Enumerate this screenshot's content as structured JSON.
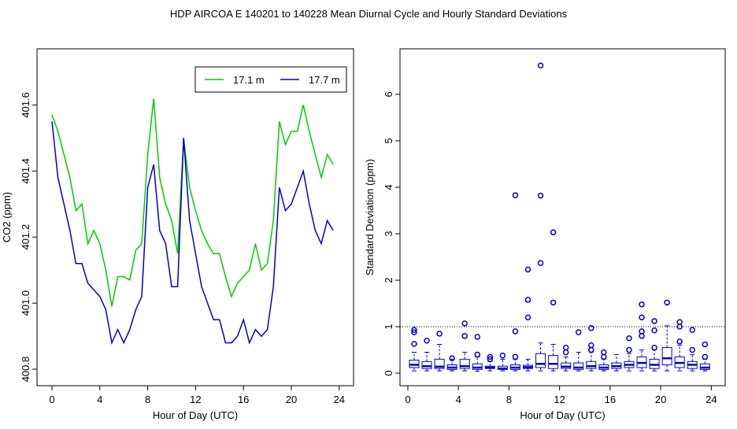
{
  "title": "HDP   AIRCOA E   140201 to 140228   Mean Diurnal Cycle and Hourly Standard Deviations",
  "chart_data": [
    {
      "type": "line",
      "xlabel": "Hour of Day (UTC)",
      "ylabel": "CO2 (ppm)",
      "x": [
        0,
        0.5,
        1,
        1.5,
        2,
        2.5,
        3,
        3.5,
        4,
        4.5,
        5,
        5.5,
        6,
        6.5,
        7,
        7.5,
        8,
        8.5,
        9,
        9.5,
        10,
        10.5,
        11,
        11.5,
        12,
        12.5,
        13,
        13.5,
        14,
        14.5,
        15,
        15.5,
        16,
        16.5,
        17,
        17.5,
        18,
        18.5,
        19,
        19.5,
        20,
        20.5,
        21,
        21.5,
        22,
        22.5,
        23,
        23.5
      ],
      "series": [
        {
          "name": "17.1 m",
          "color": "#00cc00",
          "values": [
            401.57,
            401.52,
            401.45,
            401.38,
            401.28,
            401.3,
            401.18,
            401.22,
            401.18,
            401.1,
            400.99,
            401.08,
            401.08,
            401.07,
            401.16,
            401.18,
            401.45,
            401.62,
            401.38,
            401.3,
            401.25,
            401.15,
            401.5,
            401.35,
            401.28,
            401.22,
            401.18,
            401.15,
            401.15,
            401.08,
            401.02,
            401.06,
            401.08,
            401.1,
            401.18,
            401.1,
            401.12,
            401.25,
            401.55,
            401.48,
            401.52,
            401.52,
            401.6,
            401.52,
            401.45,
            401.38,
            401.45,
            401.42
          ]
        },
        {
          "name": "17.7 m",
          "color": "#0000cc",
          "values": [
            401.55,
            401.38,
            401.3,
            401.22,
            401.12,
            401.12,
            401.06,
            401.04,
            401.02,
            400.98,
            400.88,
            400.92,
            400.88,
            400.92,
            400.98,
            401.02,
            401.35,
            401.42,
            401.22,
            401.18,
            401.05,
            401.05,
            401.5,
            401.25,
            401.15,
            401.05,
            401.0,
            400.95,
            400.95,
            400.88,
            400.88,
            400.9,
            400.95,
            400.88,
            400.92,
            400.9,
            400.92,
            401.05,
            401.35,
            401.28,
            401.3,
            401.35,
            401.4,
            401.3,
            401.22,
            401.18,
            401.25,
            401.22
          ]
        }
      ],
      "xlim": [
        -1.25,
        25.2
      ],
      "ylim": [
        400.75,
        401.77
      ],
      "xticks": [
        0,
        4,
        8,
        12,
        16,
        20,
        24
      ],
      "yticks": [
        400.8,
        {
          "value": 401,
          "label": "401.0"
        },
        401.2,
        401.4,
        401.6
      ],
      "legend": "topright"
    },
    {
      "type": "box",
      "xlabel": "Hour of Day (UTC)",
      "ylabel": "Standard Deviation (ppm)",
      "color": "#0000cc",
      "x": [
        0.5,
        1.5,
        2.5,
        3.5,
        4.5,
        5.5,
        6.5,
        7.5,
        8.5,
        9.5,
        10.5,
        11.5,
        12.5,
        13.5,
        14.5,
        15.5,
        16.5,
        17.5,
        18.5,
        19.5,
        20.5,
        21.5,
        22.5,
        23.5
      ],
      "boxes": [
        {
          "whislo": 0.05,
          "q1": 0.12,
          "med": 0.18,
          "q3": 0.28,
          "whishi": 0.45,
          "fliers": [
            0.63,
            0.88,
            0.93
          ]
        },
        {
          "whislo": 0.05,
          "q1": 0.1,
          "med": 0.15,
          "q3": 0.25,
          "whishi": 0.45,
          "fliers": [
            0.7
          ]
        },
        {
          "whislo": 0.05,
          "q1": 0.1,
          "med": 0.14,
          "q3": 0.3,
          "whishi": 0.62,
          "fliers": [
            0.85
          ]
        },
        {
          "whislo": 0.05,
          "q1": 0.08,
          "med": 0.12,
          "q3": 0.18,
          "whishi": 0.3,
          "fliers": [
            0.32
          ]
        },
        {
          "whislo": 0.05,
          "q1": 0.1,
          "med": 0.15,
          "q3": 0.3,
          "whishi": 0.45,
          "fliers": [
            0.8,
            1.07
          ]
        },
        {
          "whislo": 0.04,
          "q1": 0.08,
          "med": 0.12,
          "q3": 0.2,
          "whishi": 0.35,
          "fliers": [
            0.4,
            0.78
          ]
        },
        {
          "whislo": 0.05,
          "q1": 0.1,
          "med": 0.12,
          "q3": 0.15,
          "whishi": 0.25,
          "fliers": [
            0.3,
            0.35
          ]
        },
        {
          "whislo": 0.05,
          "q1": 0.08,
          "med": 0.1,
          "q3": 0.15,
          "whishi": 0.3,
          "fliers": [
            0.38
          ]
        },
        {
          "whislo": 0.05,
          "q1": 0.08,
          "med": 0.12,
          "q3": 0.18,
          "whishi": 0.3,
          "fliers": [
            0.35,
            0.9,
            3.83
          ]
        },
        {
          "whislo": 0.05,
          "q1": 0.1,
          "med": 0.13,
          "q3": 0.17,
          "whishi": 0.3,
          "fliers": [
            1.2,
            1.58,
            2.23
          ]
        },
        {
          "whislo": 0.05,
          "q1": 0.12,
          "med": 0.2,
          "q3": 0.42,
          "whishi": 0.65,
          "fliers": [
            2.37,
            3.82,
            6.62
          ]
        },
        {
          "whislo": 0.05,
          "q1": 0.1,
          "med": 0.2,
          "q3": 0.38,
          "whishi": 0.62,
          "fliers": [
            1.52,
            3.03
          ]
        },
        {
          "whislo": 0.05,
          "q1": 0.1,
          "med": 0.14,
          "q3": 0.22,
          "whishi": 0.35,
          "fliers": [
            0.45,
            0.55
          ]
        },
        {
          "whislo": 0.05,
          "q1": 0.08,
          "med": 0.12,
          "q3": 0.22,
          "whishi": 0.45,
          "fliers": [
            0.88
          ]
        },
        {
          "whislo": 0.05,
          "q1": 0.1,
          "med": 0.15,
          "q3": 0.25,
          "whishi": 0.45,
          "fliers": [
            0.5,
            0.6,
            0.97
          ]
        },
        {
          "whislo": 0.05,
          "q1": 0.08,
          "med": 0.12,
          "q3": 0.18,
          "whishi": 0.3,
          "fliers": [
            0.35,
            0.45
          ]
        },
        {
          "whislo": 0.05,
          "q1": 0.1,
          "med": 0.15,
          "q3": 0.22,
          "whishi": 0.4,
          "fliers": []
        },
        {
          "whislo": 0.05,
          "q1": 0.12,
          "med": 0.18,
          "q3": 0.25,
          "whishi": 0.42,
          "fliers": [
            0.5,
            0.75
          ]
        },
        {
          "whislo": 0.05,
          "q1": 0.12,
          "med": 0.22,
          "q3": 0.35,
          "whishi": 0.5,
          "fliers": [
            0.8,
            0.9,
            1.2,
            1.48
          ]
        },
        {
          "whislo": 0.05,
          "q1": 0.1,
          "med": 0.18,
          "q3": 0.3,
          "whishi": 0.5,
          "fliers": [
            0.55,
            0.92,
            1.12
          ]
        },
        {
          "whislo": 0.05,
          "q1": 0.18,
          "med": 0.32,
          "q3": 0.55,
          "whishi": 1.02,
          "fliers": [
            1.52
          ]
        },
        {
          "whislo": 0.05,
          "q1": 0.12,
          "med": 0.22,
          "q3": 0.35,
          "whishi": 0.6,
          "fliers": [
            0.68,
            1.0,
            1.1
          ]
        },
        {
          "whislo": 0.05,
          "q1": 0.1,
          "med": 0.18,
          "q3": 0.25,
          "whishi": 0.4,
          "fliers": [
            0.5,
            0.93
          ]
        },
        {
          "whislo": 0.05,
          "q1": 0.08,
          "med": 0.12,
          "q3": 0.2,
          "whishi": 0.3,
          "fliers": [
            0.35,
            0.62
          ]
        }
      ],
      "hline": 1,
      "xlim": [
        -0.62,
        25.1
      ],
      "ylim": [
        -0.27,
        6.98
      ],
      "xticks": [
        0,
        4,
        8,
        12,
        16,
        20,
        24
      ],
      "yticks": [
        0,
        1,
        2,
        3,
        4,
        5,
        6
      ]
    }
  ]
}
